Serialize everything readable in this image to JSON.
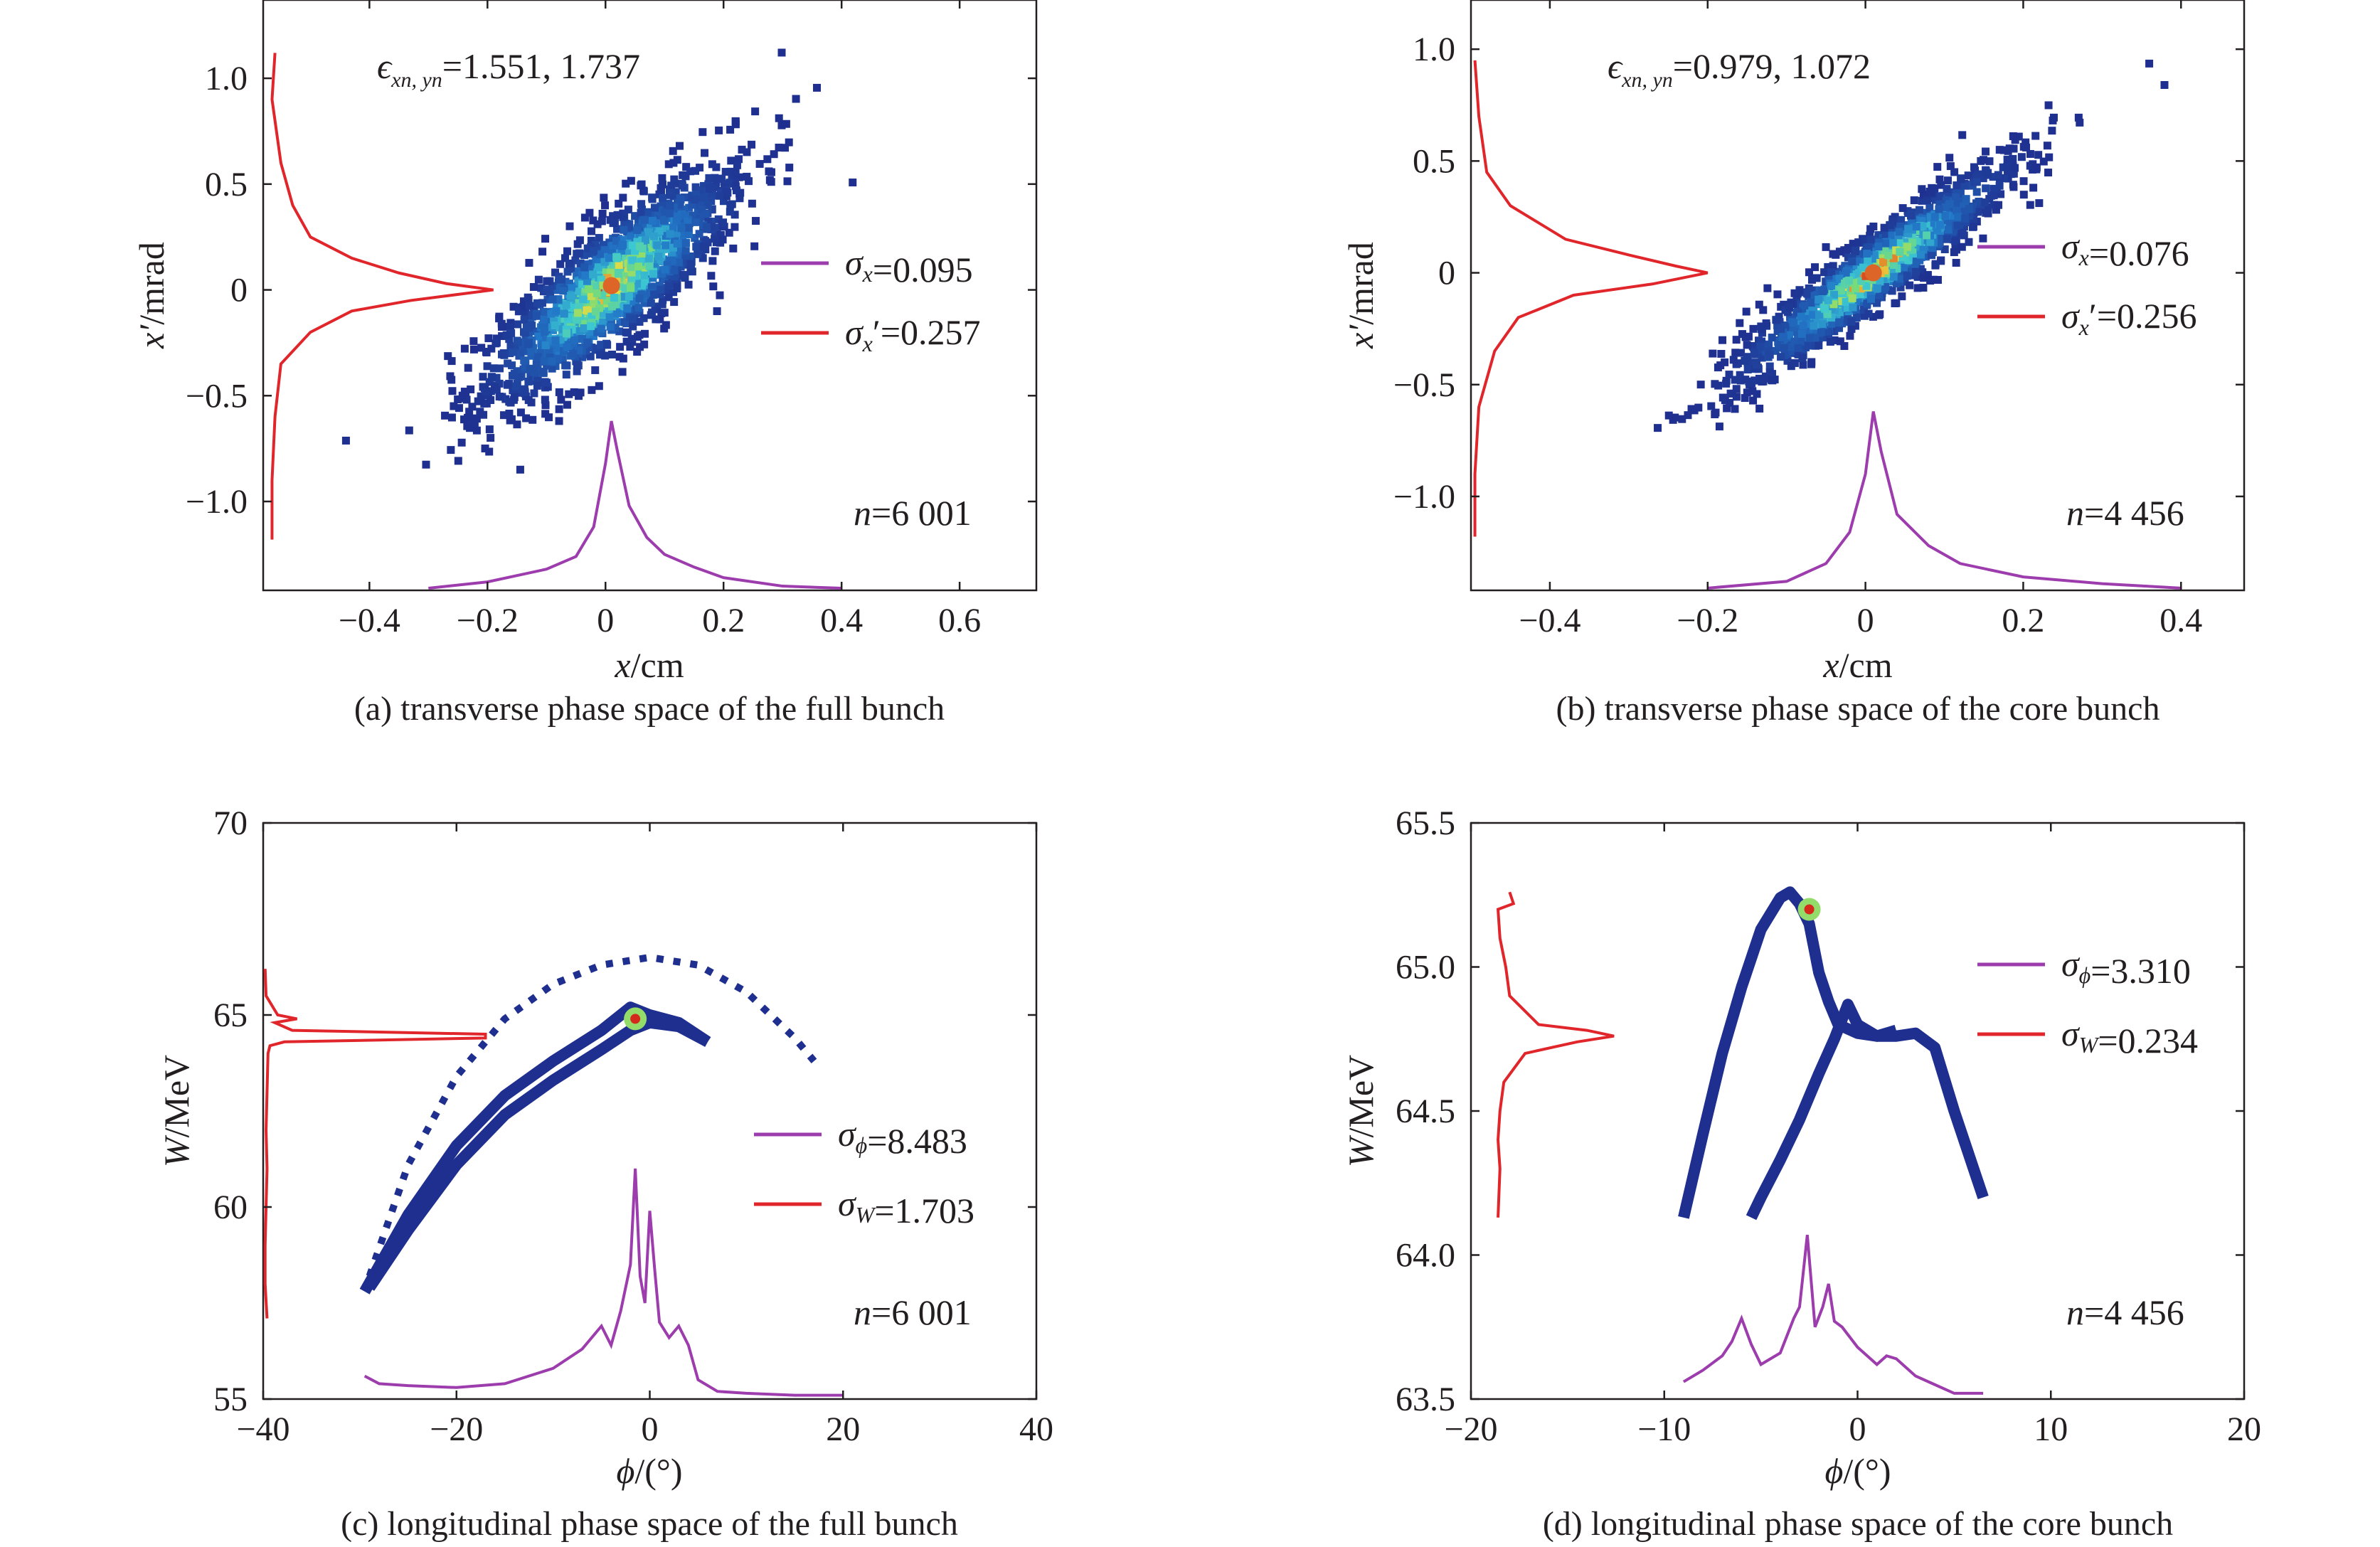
{
  "figure_title": "",
  "colors": {
    "x_profile": "#9c3cad",
    "y_profile": "#e0262b",
    "frame": "#231f20",
    "density_low": "#1f2f8f",
    "density_high": "#d42a1c"
  },
  "chart_data": [
    {
      "id": "a",
      "type": "heatmap",
      "caption": "(a) transverse phase space of the full bunch",
      "xlabel_var": "x",
      "xlabel_unit": "/cm",
      "ylabel_var": "x′",
      "ylabel_unit": "/mrad",
      "xlim": [
        -0.58,
        0.73
      ],
      "ylim": [
        -1.42,
        1.37
      ],
      "xticks": [
        -0.4,
        -0.2,
        0,
        0.2,
        0.4,
        0.6
      ],
      "xtick_labels": [
        "−0.4",
        "−0.2",
        "0",
        "0.2",
        "0.4",
        "0.6"
      ],
      "yticks": [
        -1.0,
        -0.5,
        0,
        0.5,
        1.0
      ],
      "ytick_labels": [
        "−1.0",
        "−0.5",
        "0",
        "0.5",
        "1.0"
      ],
      "emittance": {
        "symbol": "ϵ",
        "sub": "xn, yn",
        "value": "=1.551, 1.737"
      },
      "legend": [
        {
          "var": "σ",
          "sub": "x",
          "value": "=0.095",
          "color": "#9c3cad"
        },
        {
          "var": "σ",
          "sub": "x",
          "prime": "′",
          "value": "=0.257",
          "color": "#e0262b"
        }
      ],
      "count_label": {
        "var": "n",
        "value": "=6 001"
      },
      "cloud": {
        "shape": "ellipse",
        "x0": 0.01,
        "y0": 0.02,
        "slope": 2.15,
        "sx": 0.11,
        "sy_perp": 0.16,
        "n": 1600,
        "seed": 11
      },
      "x_profile": {
        "x": [
          -0.3,
          -0.2,
          -0.15,
          -0.1,
          -0.05,
          -0.02,
          0.0,
          0.01,
          0.02,
          0.04,
          0.07,
          0.1,
          0.15,
          0.2,
          0.3,
          0.4
        ],
        "y": [
          -1.41,
          -1.38,
          -1.35,
          -1.32,
          -1.26,
          -1.12,
          -0.82,
          -0.62,
          -0.76,
          -1.02,
          -1.17,
          -1.25,
          -1.31,
          -1.36,
          -1.4,
          -1.41
        ]
      },
      "y_profile": {
        "y": [
          1.12,
          0.9,
          0.6,
          0.4,
          0.25,
          0.15,
          0.08,
          0.03,
          0.0,
          -0.05,
          -0.1,
          -0.2,
          -0.35,
          -0.6,
          -0.9,
          -1.18
        ],
        "x": [
          -0.56,
          -0.565,
          -0.55,
          -0.53,
          -0.5,
          -0.43,
          -0.35,
          -0.27,
          -0.19,
          -0.33,
          -0.43,
          -0.5,
          -0.55,
          -0.56,
          -0.565,
          -0.565
        ]
      }
    },
    {
      "id": "b",
      "type": "heatmap",
      "caption": "(b) transverse phase space of the core bunch",
      "xlabel_var": "x",
      "xlabel_unit": "/cm",
      "ylabel_var": "x′",
      "ylabel_unit": "/mrad",
      "xlim": [
        -0.5,
        0.48
      ],
      "ylim": [
        -1.42,
        1.22
      ],
      "xticks": [
        -0.4,
        -0.2,
        0,
        0.2,
        0.4
      ],
      "xtick_labels": [
        "−0.4",
        "−0.2",
        "0",
        "0.2",
        "0.4"
      ],
      "yticks": [
        -1.0,
        -0.5,
        0,
        0.5,
        1.0
      ],
      "ytick_labels": [
        "−1.0",
        "−0.5",
        "0",
        "0.5",
        "1.0"
      ],
      "emittance": {
        "symbol": "ϵ",
        "sub": "xn, yn",
        "value": "=0.979, 1.072"
      },
      "legend": [
        {
          "var": "σ",
          "sub": "x",
          "value": "=0.076",
          "color": "#9c3cad"
        },
        {
          "var": "σ",
          "sub": "x",
          "prime": "′",
          "value": "=0.256",
          "color": "#e0262b"
        }
      ],
      "count_label": {
        "var": "n",
        "value": "=4 456"
      },
      "cloud": {
        "shape": "ellipse",
        "x0": 0.01,
        "y0": 0.0,
        "slope": 2.6,
        "sx": 0.09,
        "sy_perp": 0.09,
        "n": 1400,
        "seed": 23
      },
      "x_profile": {
        "x": [
          -0.2,
          -0.1,
          -0.05,
          -0.02,
          0.0,
          0.01,
          0.02,
          0.04,
          0.08,
          0.12,
          0.2,
          0.3,
          0.4
        ],
        "y": [
          -1.41,
          -1.38,
          -1.3,
          -1.16,
          -0.9,
          -0.62,
          -0.8,
          -1.08,
          -1.22,
          -1.3,
          -1.36,
          -1.39,
          -1.41
        ]
      },
      "y_profile": {
        "y": [
          0.95,
          0.7,
          0.45,
          0.3,
          0.15,
          0.08,
          0.03,
          0.0,
          -0.05,
          -0.1,
          -0.2,
          -0.35,
          -0.6,
          -0.9,
          -1.18
        ],
        "x": [
          -0.495,
          -0.49,
          -0.48,
          -0.45,
          -0.38,
          -0.3,
          -0.24,
          -0.2,
          -0.27,
          -0.37,
          -0.44,
          -0.47,
          -0.49,
          -0.495,
          -0.495
        ]
      }
    },
    {
      "id": "c",
      "type": "heatmap",
      "caption": "(c) longitudinal phase space of the full bunch",
      "xlabel_var": "ϕ",
      "xlabel_unit": "/(°)",
      "ylabel_var": "W",
      "ylabel_unit": "/MeV",
      "xlim": [
        -40,
        40
      ],
      "ylim": [
        55,
        70
      ],
      "xticks": [
        -40,
        -20,
        0,
        20,
        40
      ],
      "xtick_labels": [
        "−40",
        "−20",
        "0",
        "20",
        "40"
      ],
      "yticks": [
        55,
        60,
        65,
        70
      ],
      "ytick_labels": [
        "55",
        "60",
        "65",
        "70"
      ],
      "emittance": null,
      "legend": [
        {
          "var": "σ",
          "sub": "ϕ",
          "value": "=8.483",
          "color": "#9c3cad"
        },
        {
          "var": "σ",
          "sub": "W",
          "value": "=1.703",
          "color": "#e0262b"
        }
      ],
      "count_label": {
        "var": "n",
        "value": "=6 001"
      },
      "bands": [
        {
          "x": [
            -29.5,
            -25,
            -20,
            -15,
            -10,
            -5,
            -2,
            0,
            3,
            6
          ],
          "y": [
            57.8,
            59.8,
            61.6,
            62.9,
            63.8,
            64.6,
            65.2,
            65.0,
            64.8,
            64.3
          ]
        },
        {
          "x": [
            -29,
            -25,
            -20,
            -15,
            -10,
            -5,
            -2,
            0,
            3,
            6
          ],
          "y": [
            57.9,
            59.4,
            61.1,
            62.4,
            63.3,
            64.1,
            64.6,
            64.8,
            64.7,
            64.3
          ]
        },
        {
          "x": [
            -29,
            -25,
            -20,
            -15,
            -10,
            -5,
            0,
            5,
            10,
            15,
            17
          ],
          "y": [
            58.2,
            61.1,
            63.4,
            64.9,
            65.8,
            66.3,
            66.5,
            66.3,
            65.6,
            64.4,
            63.8
          ]
        }
      ],
      "hot": {
        "x": -1.5,
        "y": 64.9
      },
      "x_profile": {
        "x": [
          -29.5,
          -28,
          -25,
          -20,
          -15,
          -10,
          -7,
          -5,
          -4,
          -3,
          -2,
          -1.5,
          -1,
          -0.5,
          0,
          0.5,
          1,
          2,
          3,
          4,
          5,
          7,
          10,
          15,
          20
        ],
        "y": [
          55.6,
          55.4,
          55.35,
          55.3,
          55.4,
          55.8,
          56.3,
          56.9,
          56.4,
          57.3,
          58.5,
          61.0,
          58.2,
          57.5,
          59.9,
          58.4,
          57.0,
          56.6,
          56.9,
          56.4,
          55.5,
          55.2,
          55.15,
          55.1,
          55.1
        ]
      },
      "y_profile": {
        "y": [
          66.2,
          65.5,
          65.0,
          64.9,
          64.8,
          64.6,
          64.5,
          64.4,
          64.3,
          64.2,
          64.0,
          63.0,
          62.0,
          61.0,
          60.0,
          59.0,
          58.0,
          57.1
        ],
        "x": [
          -39.8,
          -39.7,
          -38.5,
          -36.5,
          -38.8,
          -37.0,
          -17.0,
          -17.0,
          -37.8,
          -39.3,
          -39.5,
          -39.6,
          -39.7,
          -39.6,
          -39.7,
          -39.8,
          -39.8,
          -39.6
        ]
      }
    },
    {
      "id": "d",
      "type": "heatmap",
      "caption": "(d) longitudinal phase space of the core bunch",
      "xlabel_var": "ϕ",
      "xlabel_unit": "/(°)",
      "ylabel_var": "W",
      "ylabel_unit": "/MeV",
      "xlim": [
        -20,
        20
      ],
      "ylim": [
        63.5,
        65.5
      ],
      "xticks": [
        -20,
        -10,
        0,
        10,
        20
      ],
      "xtick_labels": [
        "−20",
        "−10",
        "0",
        "10",
        "20"
      ],
      "yticks": [
        63.5,
        64.0,
        64.5,
        65.0,
        65.5
      ],
      "ytick_labels": [
        "63.5",
        "64.0",
        "64.5",
        "65.0",
        "65.5"
      ],
      "emittance": null,
      "legend": [
        {
          "var": "σ",
          "sub": "ϕ",
          "value": "=3.310",
          "color": "#9c3cad"
        },
        {
          "var": "σ",
          "sub": "W",
          "value": "=0.234",
          "color": "#e0262b"
        }
      ],
      "count_label": {
        "var": "n",
        "value": "=4 456"
      },
      "bands": [
        {
          "x": [
            -9,
            -8,
            -7,
            -6,
            -5,
            -4,
            -3.5,
            -3,
            -2.5,
            -2,
            -1.5,
            -1,
            0,
            1,
            2,
            3,
            4,
            5,
            6.5
          ],
          "y": [
            64.13,
            64.42,
            64.7,
            64.93,
            65.13,
            65.24,
            65.26,
            65.22,
            65.15,
            64.98,
            64.88,
            64.8,
            64.77,
            64.76,
            64.76,
            64.77,
            64.72,
            64.5,
            64.2
          ]
        },
        {
          "x": [
            -5.5,
            -5,
            -4,
            -3,
            -2,
            -1.2,
            -0.5,
            0,
            1,
            2
          ],
          "y": [
            64.13,
            64.2,
            64.33,
            64.47,
            64.63,
            64.75,
            64.87,
            64.8,
            64.76,
            64.78
          ]
        }
      ],
      "hot": {
        "x": -2.5,
        "y": 65.2
      },
      "x_profile": {
        "x": [
          -9,
          -8,
          -7,
          -6.5,
          -6,
          -5.5,
          -5,
          -4,
          -3.3,
          -3,
          -2.6,
          -2.2,
          -1.8,
          -1.5,
          -1.2,
          -0.8,
          0,
          1,
          1.5,
          2,
          3,
          4,
          5,
          6.5
        ],
        "y": [
          63.56,
          63.6,
          63.65,
          63.7,
          63.78,
          63.69,
          63.62,
          63.66,
          63.78,
          63.82,
          64.07,
          63.75,
          63.82,
          63.9,
          63.77,
          63.75,
          63.68,
          63.62,
          63.65,
          63.64,
          63.58,
          63.55,
          63.52,
          63.52
        ]
      },
      "y_profile": {
        "y": [
          65.26,
          65.22,
          65.2,
          65.1,
          65.0,
          64.9,
          64.8,
          64.78,
          64.76,
          64.74,
          64.7,
          64.6,
          64.5,
          64.4,
          64.3,
          64.13
        ],
        "x": [
          -18.0,
          -17.8,
          -18.6,
          -18.5,
          -18.2,
          -18.0,
          -16.5,
          -14.0,
          -12.6,
          -14.5,
          -17.2,
          -18.3,
          -18.5,
          -18.6,
          -18.5,
          -18.6
        ]
      }
    }
  ]
}
